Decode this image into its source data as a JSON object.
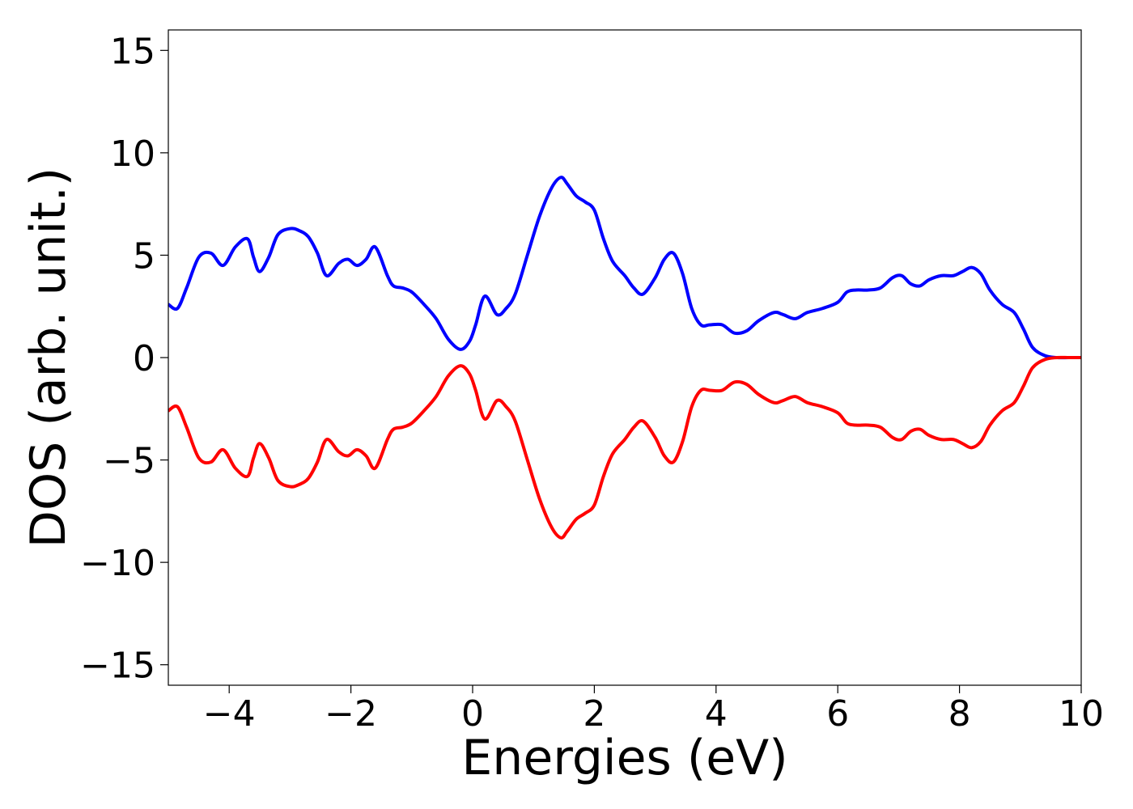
{
  "chart_data": {
    "type": "line",
    "title": "",
    "xlabel": "Energies (eV)",
    "ylabel": "DOS (arb. unit.)",
    "xlim": [
      -5,
      10
    ],
    "ylim": [
      -16,
      16
    ],
    "xticks": [
      -4,
      -2,
      0,
      2,
      4,
      6,
      8,
      10
    ],
    "xtick_labels": [
      "−4",
      "−2",
      "0",
      "2",
      "4",
      "6",
      "8",
      "10"
    ],
    "yticks": [
      15,
      10,
      5,
      0,
      -5,
      -10,
      -15
    ],
    "ytick_labels": [
      "15",
      "10",
      "5",
      "0",
      "−5",
      "−10",
      "−15"
    ],
    "grid": false,
    "legend": "none",
    "series": [
      {
        "color": "#0000ff",
        "x": [
          -5.0,
          -4.85,
          -4.7,
          -4.5,
          -4.3,
          -4.1,
          -3.9,
          -3.7,
          -3.6,
          -3.5,
          -3.35,
          -3.2,
          -3.0,
          -2.85,
          -2.7,
          -2.55,
          -2.4,
          -2.2,
          -2.05,
          -1.9,
          -1.75,
          -1.6,
          -1.4,
          -1.3,
          -1.15,
          -1.0,
          -0.8,
          -0.6,
          -0.4,
          -0.2,
          -0.05,
          0.05,
          0.2,
          0.4,
          0.55,
          0.7,
          0.9,
          1.1,
          1.3,
          1.45,
          1.55,
          1.7,
          1.85,
          2.0,
          2.15,
          2.3,
          2.5,
          2.65,
          2.8,
          3.0,
          3.15,
          3.3,
          3.45,
          3.6,
          3.75,
          3.9,
          4.1,
          4.3,
          4.5,
          4.7,
          4.95,
          5.1,
          5.3,
          5.5,
          5.75,
          6.0,
          6.15,
          6.3,
          6.5,
          6.7,
          6.9,
          7.05,
          7.2,
          7.35,
          7.5,
          7.7,
          7.9,
          8.05,
          8.2,
          8.35,
          8.5,
          8.7,
          8.9,
          9.05,
          9.2,
          9.4,
          9.6,
          9.8,
          10.0
        ],
        "y": [
          2.6,
          2.4,
          3.4,
          4.9,
          5.1,
          4.5,
          5.4,
          5.8,
          4.9,
          4.2,
          4.9,
          6.0,
          6.3,
          6.2,
          5.9,
          5.1,
          4.0,
          4.6,
          4.8,
          4.5,
          4.8,
          5.4,
          4.0,
          3.5,
          3.4,
          3.2,
          2.6,
          1.9,
          0.9,
          0.4,
          0.8,
          1.6,
          3.0,
          2.1,
          2.4,
          3.1,
          5.0,
          6.9,
          8.3,
          8.8,
          8.5,
          7.9,
          7.6,
          7.2,
          5.8,
          4.7,
          4.0,
          3.4,
          3.1,
          3.9,
          4.8,
          5.1,
          4.1,
          2.4,
          1.6,
          1.6,
          1.6,
          1.2,
          1.3,
          1.8,
          2.2,
          2.1,
          1.9,
          2.2,
          2.4,
          2.7,
          3.2,
          3.3,
          3.3,
          3.4,
          3.9,
          4.0,
          3.6,
          3.5,
          3.8,
          4.0,
          4.0,
          4.2,
          4.4,
          4.1,
          3.3,
          2.6,
          2.2,
          1.4,
          0.5,
          0.1,
          0.0,
          0.0,
          0.0
        ]
      },
      {
        "color": "#ff0000",
        "x": [
          -5.0,
          -4.85,
          -4.7,
          -4.5,
          -4.3,
          -4.1,
          -3.9,
          -3.7,
          -3.6,
          -3.5,
          -3.35,
          -3.2,
          -3.0,
          -2.85,
          -2.7,
          -2.55,
          -2.4,
          -2.2,
          -2.05,
          -1.9,
          -1.75,
          -1.6,
          -1.4,
          -1.3,
          -1.15,
          -1.0,
          -0.8,
          -0.6,
          -0.4,
          -0.2,
          -0.05,
          0.05,
          0.2,
          0.4,
          0.55,
          0.7,
          0.9,
          1.1,
          1.3,
          1.45,
          1.55,
          1.7,
          1.85,
          2.0,
          2.15,
          2.3,
          2.5,
          2.65,
          2.8,
          3.0,
          3.15,
          3.3,
          3.45,
          3.6,
          3.75,
          3.9,
          4.1,
          4.3,
          4.5,
          4.7,
          4.95,
          5.1,
          5.3,
          5.5,
          5.75,
          6.0,
          6.15,
          6.3,
          6.5,
          6.7,
          6.9,
          7.05,
          7.2,
          7.35,
          7.5,
          7.7,
          7.9,
          8.05,
          8.2,
          8.35,
          8.5,
          8.7,
          8.9,
          9.05,
          9.2,
          9.4,
          9.6,
          9.8,
          10.0
        ],
        "y": [
          -2.6,
          -2.4,
          -3.4,
          -4.9,
          -5.1,
          -4.5,
          -5.4,
          -5.8,
          -4.9,
          -4.2,
          -4.9,
          -6.0,
          -6.3,
          -6.2,
          -5.9,
          -5.1,
          -4.0,
          -4.6,
          -4.8,
          -4.5,
          -4.8,
          -5.4,
          -4.0,
          -3.5,
          -3.4,
          -3.2,
          -2.6,
          -1.9,
          -0.9,
          -0.4,
          -0.8,
          -1.6,
          -3.0,
          -2.1,
          -2.4,
          -3.1,
          -5.0,
          -6.9,
          -8.3,
          -8.8,
          -8.5,
          -7.9,
          -7.6,
          -7.2,
          -5.8,
          -4.7,
          -4.0,
          -3.4,
          -3.1,
          -3.9,
          -4.8,
          -5.1,
          -4.1,
          -2.4,
          -1.6,
          -1.6,
          -1.6,
          -1.2,
          -1.3,
          -1.8,
          -2.2,
          -2.1,
          -1.9,
          -2.2,
          -2.4,
          -2.7,
          -3.2,
          -3.3,
          -3.3,
          -3.4,
          -3.9,
          -4.0,
          -3.6,
          -3.5,
          -3.8,
          -4.0,
          -4.0,
          -4.2,
          -4.4,
          -4.1,
          -3.3,
          -2.6,
          -2.2,
          -1.4,
          -0.5,
          -0.1,
          0.0,
          0.0,
          0.0
        ]
      }
    ]
  }
}
